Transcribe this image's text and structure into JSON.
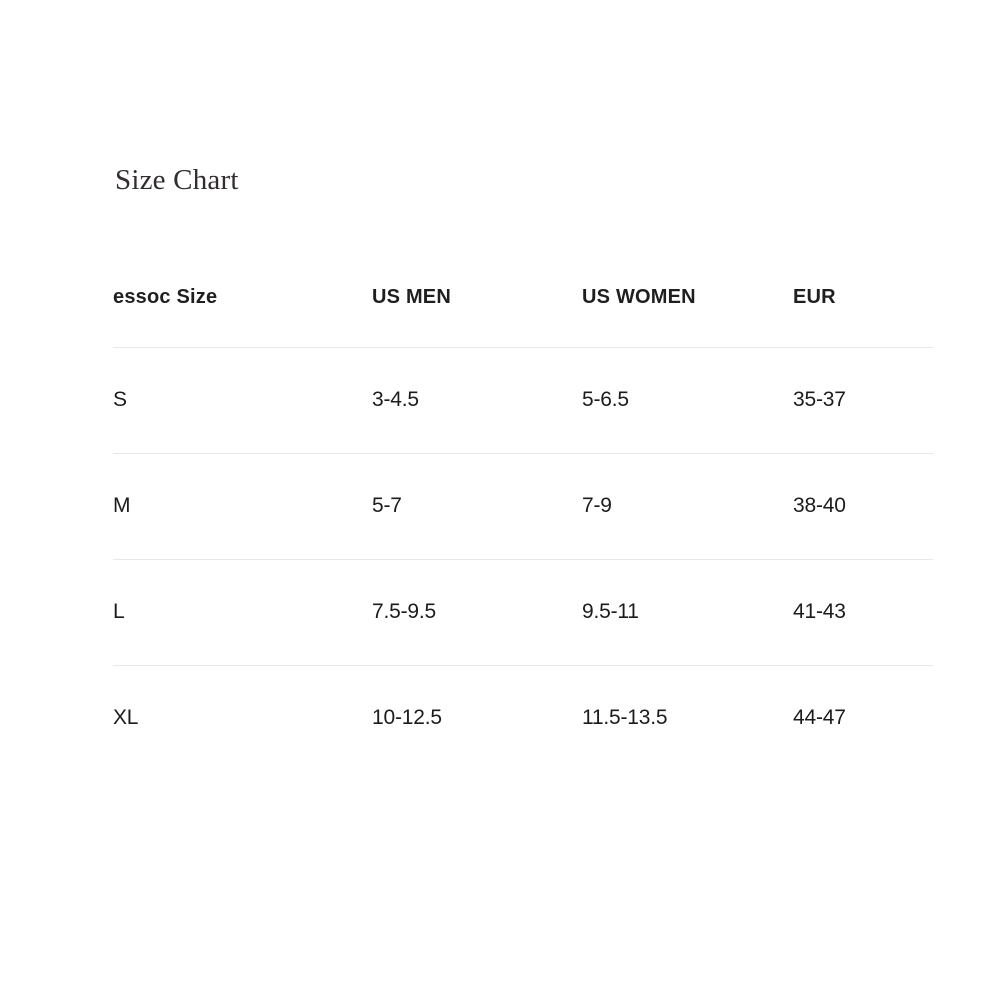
{
  "title": "Size Chart",
  "colors": {
    "background": "#ffffff",
    "title_text": "#332e2e",
    "header_text": "#1f1f1f",
    "cell_text": "#1c1c1c",
    "divider": "#e8e8e8"
  },
  "table": {
    "columns": {
      "size": "essoc Size",
      "us_men": "US MEN",
      "us_women": "US WOMEN",
      "eur": "EUR"
    },
    "rows": [
      {
        "size": "S",
        "us_men": "3-4.5",
        "us_women": "5-6.5",
        "eur": "35-37"
      },
      {
        "size": "M",
        "us_men": "5-7",
        "us_women": "7-9",
        "eur": "38-40"
      },
      {
        "size": "L",
        "us_men": "7.5-9.5",
        "us_women": "9.5-11",
        "eur": "41-43"
      },
      {
        "size": "XL",
        "us_men": "10-12.5",
        "us_women": "11.5-13.5",
        "eur": "44-47"
      }
    ]
  }
}
